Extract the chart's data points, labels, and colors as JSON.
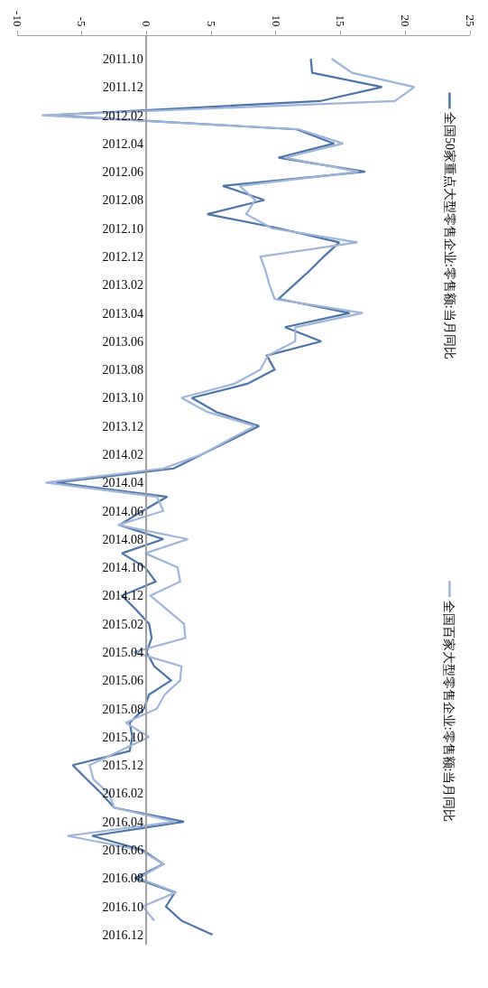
{
  "chart_data": {
    "type": "line",
    "categories": [
      "2011.10",
      null,
      "2011.12",
      null,
      "2012.02",
      null,
      "2012.04",
      null,
      "2012.06",
      null,
      "2012.08",
      null,
      "2012.10",
      null,
      "2012.12",
      null,
      "2013.02",
      null,
      "2013.04",
      null,
      "2013.06",
      null,
      "2013.08",
      null,
      "2013.10",
      null,
      "2013.12",
      null,
      "2014.02",
      null,
      "2014.04",
      null,
      "2014.06",
      null,
      "2014.08",
      null,
      "2014.10",
      null,
      "2014.12",
      null,
      "2015.02",
      null,
      "2015.04",
      null,
      "2015.06",
      null,
      "2015.08",
      null,
      "2015.10",
      null,
      "2015.12",
      null,
      "2016.02",
      null,
      "2016.04",
      null,
      "2016.06",
      null,
      "2016.08",
      null,
      "2016.10",
      null,
      "2016.12"
    ],
    "series": [
      {
        "name": "全国50家重点大型零售企业:零售额:当月同比",
        "color": "#4a74aa",
        "values": [
          12.7,
          12.8,
          18.2,
          13.4,
          -7.5,
          11.6,
          14.5,
          10.2,
          16.9,
          5.9,
          9.1,
          4.7,
          10.2,
          14.9,
          13.7,
          12.6,
          11.4,
          10.2,
          15.7,
          10.7,
          13.5,
          9.3,
          9.9,
          7.8,
          3.5,
          5.4,
          8.7,
          6.5,
          4.3,
          2.1,
          -7.0,
          1.6,
          -0.3,
          -2.1,
          1.3,
          -1.9,
          -0.1,
          0.7,
          -1.9,
          -0.8,
          0.2,
          0.4,
          0.0,
          0.6,
          1.9,
          0.2,
          -0.2,
          -1.3,
          -1.1,
          -1.3,
          -5.7,
          -4.6,
          -3.5,
          -2.5,
          2.9,
          -4.2,
          -0.3,
          1.3,
          -0.9,
          2.2,
          1.5,
          2.7,
          5.1
        ]
      },
      {
        "name": "全国百家大型零售企业:零售额:当月同比",
        "color": "#9db5da",
        "values": [
          14.3,
          15.9,
          20.7,
          19.2,
          -8.1,
          11.8,
          15.2,
          10.7,
          16.4,
          7.2,
          8.4,
          7.7,
          9.7,
          16.3,
          8.8,
          9.2,
          9.5,
          9.9,
          16.7,
          11.5,
          11.5,
          9.4,
          8.8,
          6.8,
          2.7,
          4.7,
          8.4,
          6.3,
          4.3,
          1.3,
          -7.8,
          0.8,
          1.3,
          -2.2,
          3.2,
          -0.1,
          2.4,
          2.6,
          0.3,
          1.6,
          2.9,
          3.0,
          -1.0,
          2.7,
          2.6,
          1.4,
          0.8,
          -1.6,
          0.2,
          -2.1,
          -4.4,
          -4.1,
          -2.9,
          -2.5,
          2.2,
          -6.1,
          -0.5,
          1.3,
          -0.6,
          2.3,
          -0.3,
          0.6,
          null
        ]
      }
    ],
    "xlim": [
      -10,
      25
    ],
    "xticks": [
      -10,
      -5,
      0,
      5,
      10,
      15,
      20,
      25
    ],
    "orientation": "horizontal",
    "legend": "right",
    "marker": "none",
    "line_style": "solid"
  }
}
